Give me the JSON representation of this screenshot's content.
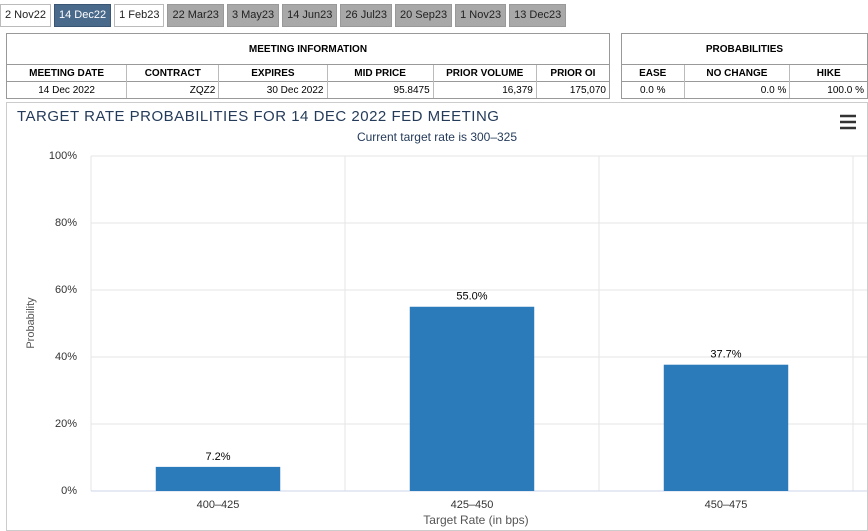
{
  "tabs": [
    {
      "label": "2 Nov22",
      "state": "plain"
    },
    {
      "label": "14 Dec22",
      "state": "active"
    },
    {
      "label": "1 Feb23",
      "state": "plain"
    },
    {
      "label": "22 Mar23",
      "state": "grey"
    },
    {
      "label": "3 May23",
      "state": "grey"
    },
    {
      "label": "14 Jun23",
      "state": "grey"
    },
    {
      "label": "26 Jul23",
      "state": "grey"
    },
    {
      "label": "20 Sep23",
      "state": "grey"
    },
    {
      "label": "1 Nov23",
      "state": "grey"
    },
    {
      "label": "13 Dec23",
      "state": "grey"
    }
  ],
  "meeting_info": {
    "title": "MEETING INFORMATION",
    "headers": [
      "MEETING DATE",
      "CONTRACT",
      "EXPIRES",
      "MID PRICE",
      "PRIOR VOLUME",
      "PRIOR OI"
    ],
    "row": [
      "14 Dec 2022",
      "ZQZ2",
      "30 Dec 2022",
      "95.8475",
      "16,379",
      "175,070"
    ]
  },
  "probabilities": {
    "title": "PROBABILITIES",
    "headers": [
      "EASE",
      "NO CHANGE",
      "HIKE"
    ],
    "row": [
      "0.0 %",
      "0.0 %",
      "100.0 %"
    ]
  },
  "chart_data": {
    "type": "bar",
    "title": "TARGET RATE PROBABILITIES FOR 14 DEC 2022 FED MEETING",
    "subtitle": "Current target rate is 300–325",
    "x_label": "Target Rate (in bps)",
    "y_label": "Probability",
    "categories": [
      "400–425",
      "425–450",
      "450–475"
    ],
    "values": [
      7.2,
      55.0,
      37.7
    ],
    "value_labels": [
      "7.2%",
      "55.0%",
      "37.7%"
    ],
    "color": "#2b7bba",
    "ylim": [
      0,
      100
    ],
    "yticks": [
      {
        "value": 0,
        "label": "0%"
      },
      {
        "value": 20,
        "label": "20%"
      },
      {
        "value": 40,
        "label": "40%"
      },
      {
        "value": 60,
        "label": "60%"
      },
      {
        "value": 80,
        "label": "80%"
      },
      {
        "value": 100,
        "label": "100%"
      }
    ],
    "grid": true
  }
}
